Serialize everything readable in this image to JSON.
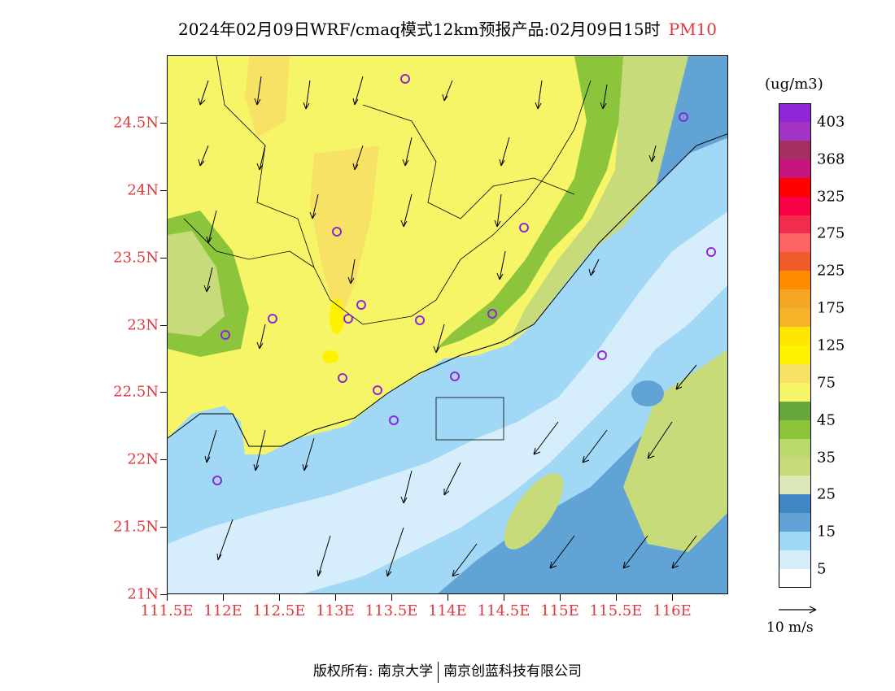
{
  "title": {
    "text": "2024年02月09日WRF/cmaq模式12km预报产品:02月09日15时",
    "pollutant": "PM10"
  },
  "colors": {
    "axis_label": "#e0383e",
    "background": "#ffffff"
  },
  "map": {
    "lat_labels": [
      "24.5N",
      "24N",
      "23.5N",
      "23N",
      "22.5N",
      "22N",
      "21.5N",
      "21N"
    ],
    "lon_labels": [
      "111.5E",
      "112E",
      "112.5E",
      "113E",
      "113.5E",
      "114E",
      "114.5E",
      "115E",
      "115.5E",
      "116E"
    ],
    "lat_range": [
      21,
      25
    ],
    "lon_range": [
      111.5,
      116.5
    ],
    "icons": [
      "station-marker-icon",
      "wind-arrow-icon"
    ]
  },
  "colorbar": {
    "unit": "(ug/m3)",
    "labels": [
      "403",
      "368",
      "325",
      "275",
      "225",
      "175",
      "125",
      "75",
      "45",
      "35",
      "25",
      "15",
      "5"
    ],
    "colors": [
      "#8f27d8",
      "#a434c4",
      "#a52f60",
      "#c61480",
      "#ff0000",
      "#f80044",
      "#f22c4c",
      "#ff6464",
      "#ef5b2a",
      "#ff8c00",
      "#f5a623",
      "#f5b429",
      "#ffe600",
      "#fff200",
      "#f7e266",
      "#f5f567",
      "#66a63c",
      "#8cc43c",
      "#bcd96b",
      "#c7db7b",
      "#dce8b8",
      "#4287c5",
      "#62a3d6",
      "#a0d8f5",
      "#d6eefb",
      "#ffffff"
    ]
  },
  "wind_reference": {
    "label": "10 m/s"
  },
  "footer": {
    "copyright": "版权所有: 南京大学",
    "partner": "南京创蓝科技有限公司"
  }
}
